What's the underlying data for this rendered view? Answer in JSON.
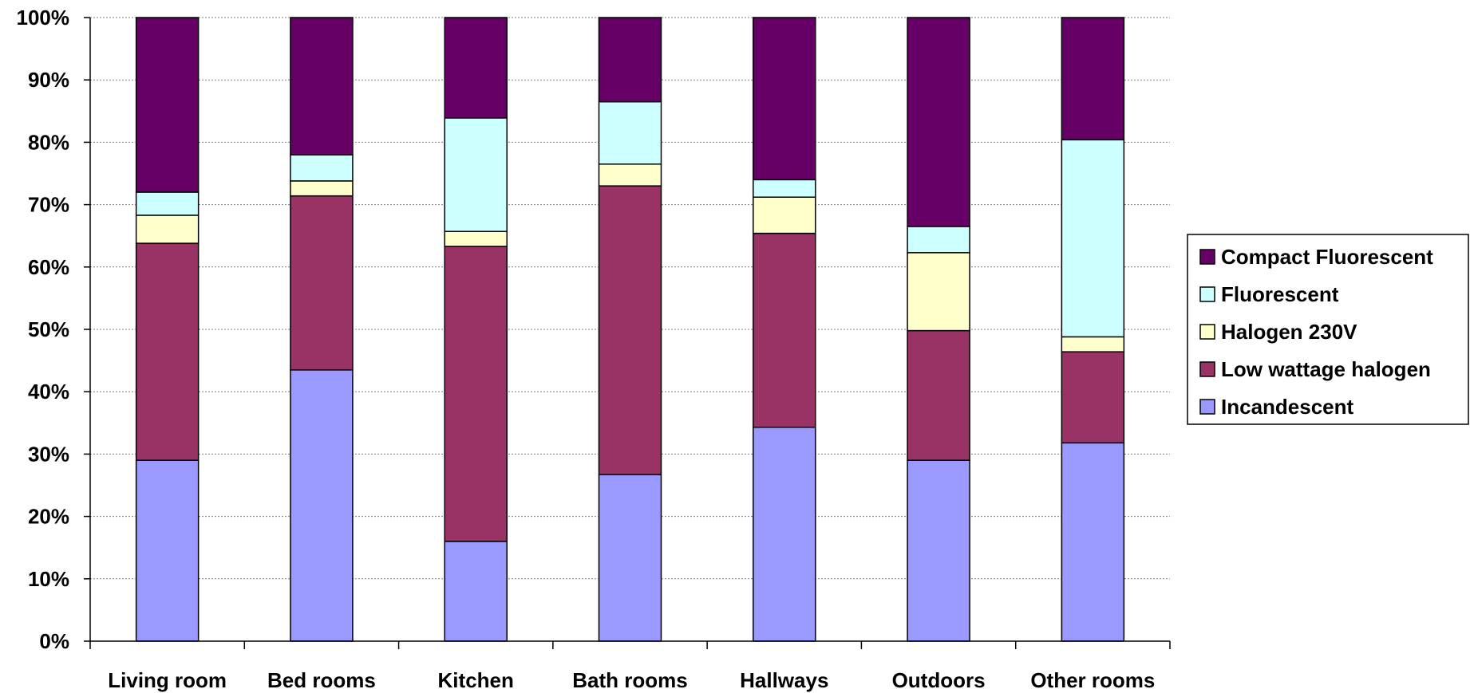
{
  "chart_data": {
    "type": "bar",
    "stacked": true,
    "normalized": true,
    "categories": [
      "Living room",
      "Bed rooms",
      "Kitchen",
      "Bath rooms",
      "Hallways",
      "Outdoors",
      "Other rooms"
    ],
    "series": [
      {
        "name": "Incandescent",
        "color": "#9999ff",
        "values": [
          29,
          43.5,
          16,
          26.7,
          34.3,
          29,
          31.8
        ]
      },
      {
        "name": "Low wattage halogen",
        "color": "#993366",
        "values": [
          34.8,
          27.9,
          47.3,
          46.3,
          31.1,
          20.8,
          14.6
        ]
      },
      {
        "name": "Halogen 230V",
        "color": "#ffffcc",
        "values": [
          4.5,
          2.4,
          2.4,
          3.5,
          5.8,
          12.5,
          2.4
        ]
      },
      {
        "name": "Fluorescent",
        "color": "#ccffff",
        "values": [
          3.7,
          4.2,
          18.2,
          10,
          2.8,
          4.2,
          31.6
        ]
      },
      {
        "name": "Compact Fluorescent",
        "color": "#660066",
        "values": [
          28,
          22,
          16.1,
          13.5,
          26,
          33.5,
          19.6
        ]
      }
    ],
    "y_ticks": [
      "0%",
      "10%",
      "20%",
      "30%",
      "40%",
      "50%",
      "60%",
      "70%",
      "80%",
      "90%",
      "100%"
    ],
    "ylim": [
      0,
      100
    ],
    "grid": true,
    "legend_position": "right",
    "legend_order": [
      "Compact Fluorescent",
      "Fluorescent",
      "Halogen 230V",
      "Low wattage halogen",
      "Incandescent"
    ]
  }
}
